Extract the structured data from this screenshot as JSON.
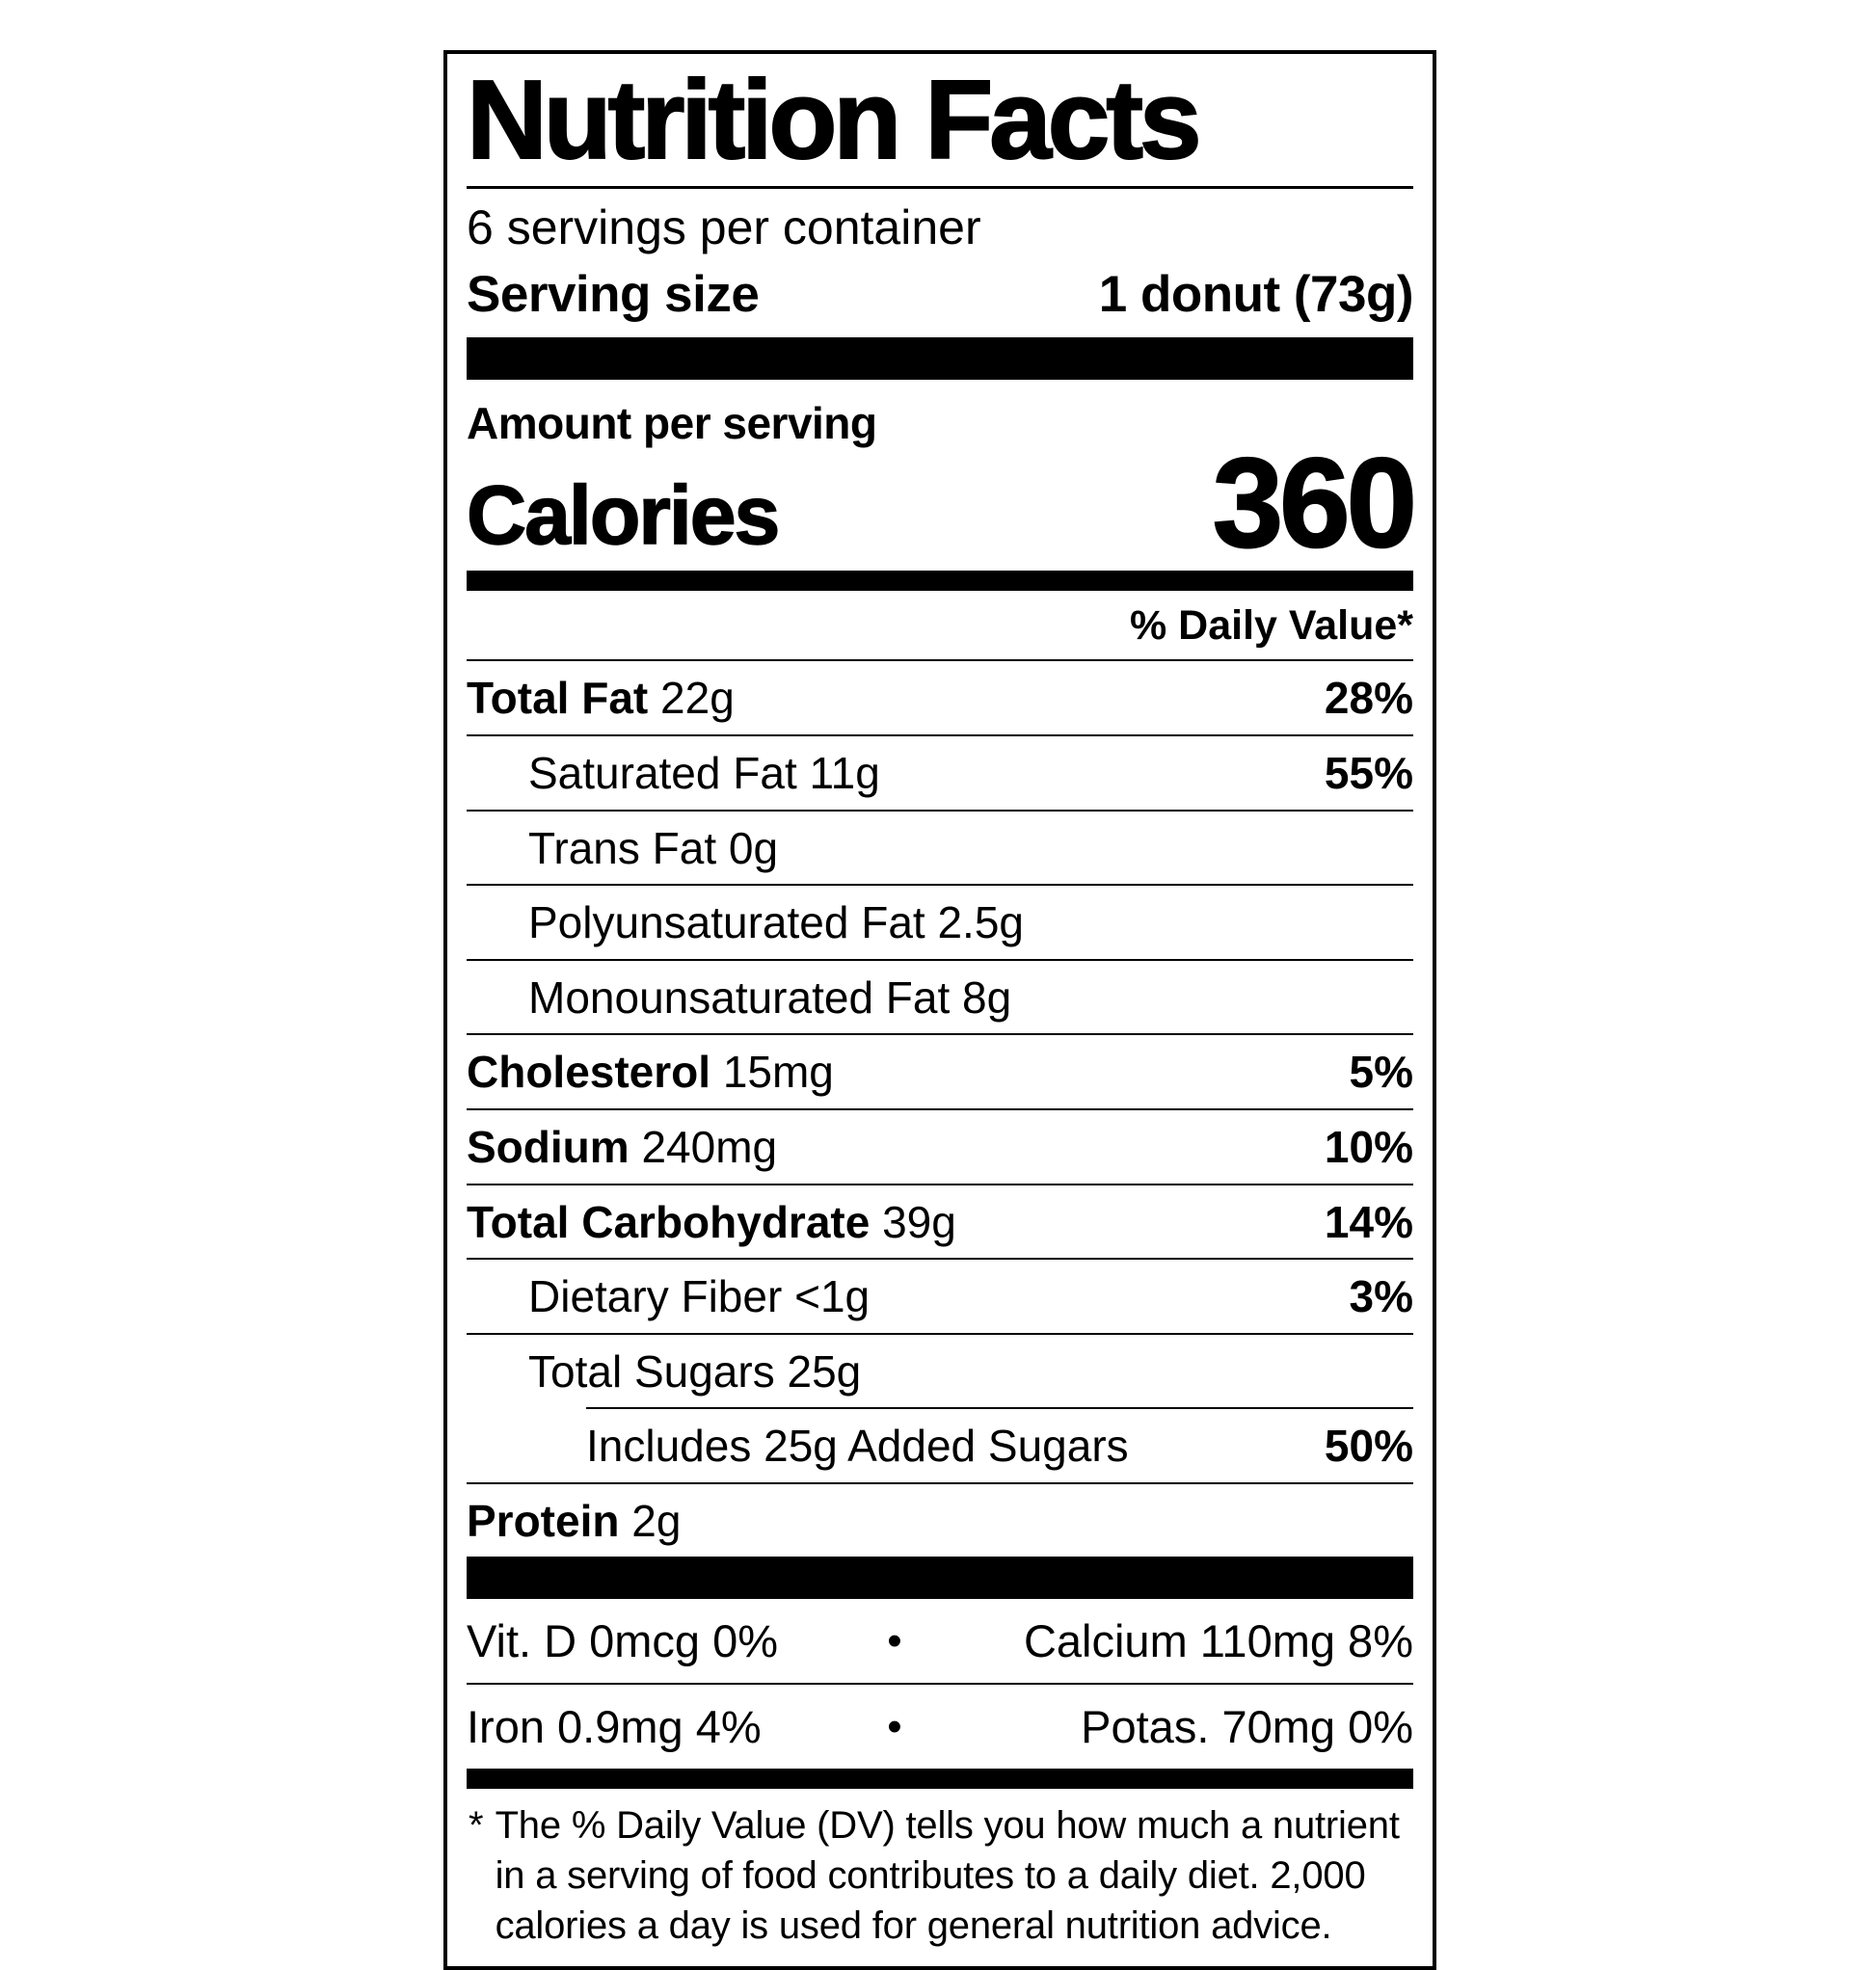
{
  "colors": {
    "ink": "#000000",
    "background": "#ffffff"
  },
  "label": {
    "title": "Nutrition Facts",
    "servings_per_container": "6 servings per container",
    "serving_size_label": "Serving size",
    "serving_size_value": "1 donut (73g)",
    "amount_per_serving": "Amount per serving",
    "calories_label": "Calories",
    "calories_value": "360",
    "daily_value_header": "% Daily Value*",
    "nutrients": [
      {
        "name": "Total Fat",
        "amount": "22g",
        "dv": "28%",
        "bold": true,
        "indent": 0
      },
      {
        "name": "Saturated Fat",
        "amount": "11g",
        "dv": "55%",
        "bold": false,
        "indent": 1
      },
      {
        "name": "Trans Fat",
        "amount": "0g",
        "dv": "",
        "bold": false,
        "indent": 1
      },
      {
        "name": "Polyunsaturated Fat",
        "amount": "2.5g",
        "dv": "",
        "bold": false,
        "indent": 1
      },
      {
        "name": "Monounsaturated Fat",
        "amount": "8g",
        "dv": "",
        "bold": false,
        "indent": 1
      },
      {
        "name": "Cholesterol",
        "amount": "15mg",
        "dv": "5%",
        "bold": true,
        "indent": 0
      },
      {
        "name": "Sodium",
        "amount": "240mg",
        "dv": "10%",
        "bold": true,
        "indent": 0
      },
      {
        "name": "Total Carbohydrate",
        "amount": "39g",
        "dv": "14%",
        "bold": true,
        "indent": 0
      },
      {
        "name": "Dietary Fiber",
        "amount": "<1g",
        "dv": "3%",
        "bold": false,
        "indent": 1
      },
      {
        "name": "Total Sugars",
        "amount": "25g",
        "dv": "",
        "bold": false,
        "indent": 1
      },
      {
        "name": "Includes 25g Added Sugars",
        "amount": "",
        "dv": "50%",
        "bold": false,
        "indent": 2
      },
      {
        "name": "Protein",
        "amount": "2g",
        "dv": "",
        "bold": true,
        "indent": 0
      }
    ],
    "bullet": "•",
    "micronutrients": [
      {
        "left": "Vit. D 0mcg 0%",
        "right": "Calcium 110mg 8%"
      },
      {
        "left": "Iron 0.9mg 4%",
        "right": "Potas. 70mg 0%"
      }
    ],
    "footnote_marker": "*",
    "footnote": "The % Daily Value (DV) tells you how much a nutrient in a serving of food contributes to a daily diet. 2,000 calories a day is used for general nutrition advice."
  }
}
